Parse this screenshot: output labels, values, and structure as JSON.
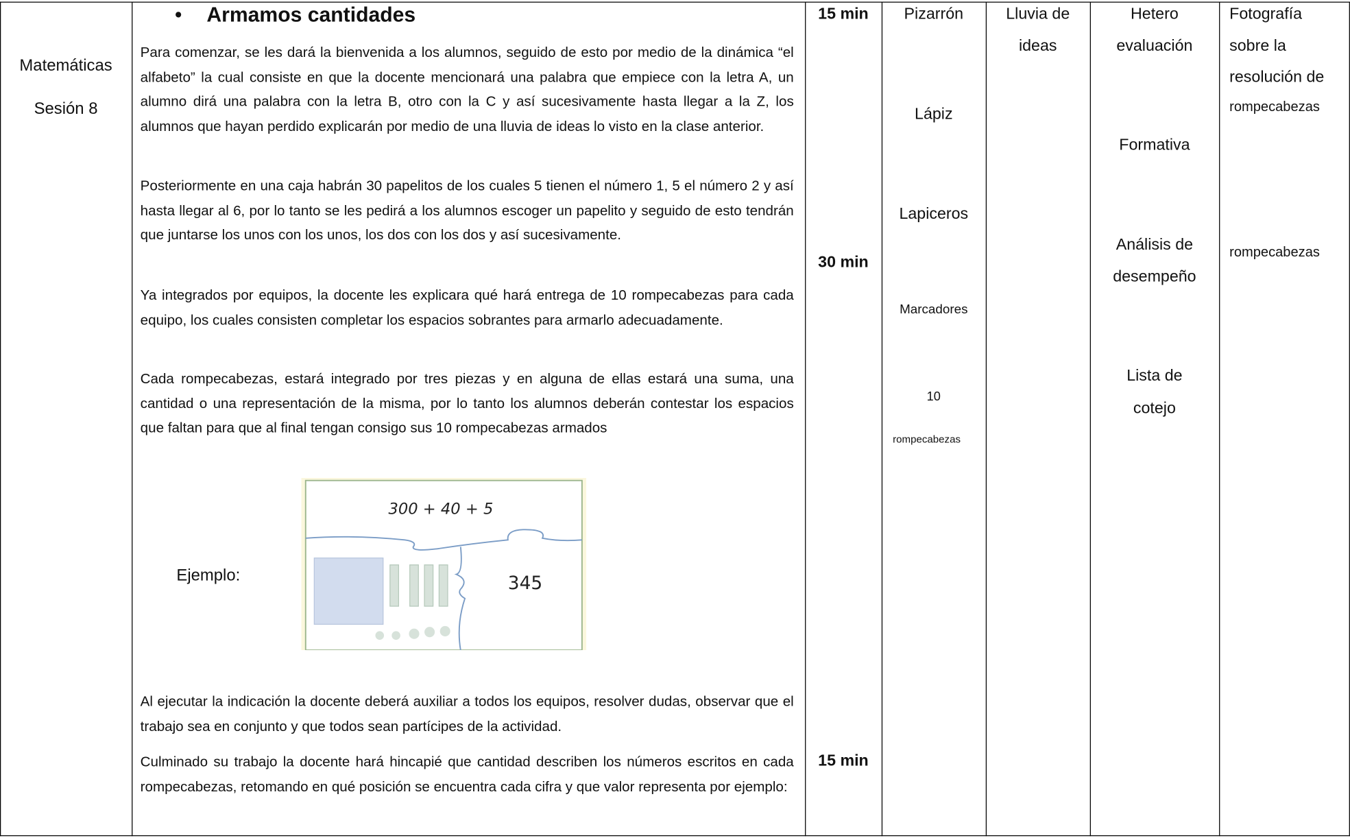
{
  "session": {
    "subject": "Matemáticas",
    "label": "Sesión 8"
  },
  "activity": {
    "title": "Armamos cantidades",
    "paragraphs": [
      "Para comenzar, se les dará la bienvenida a los alumnos, seguido de esto por medio de la dinámica “el alfabeto” la cual consiste en que la docente mencionará una palabra que empiece con la letra A, un alumno dirá una palabra con la letra B, otro con la C y así sucesivamente hasta llegar a la Z, los alumnos que hayan perdido explicarán por medio de una lluvia de ideas lo visto en la clase anterior.",
      "Posteriormente en una caja habrán 30 papelitos de los cuales 5 tienen el número 1, 5 el número 2 y así hasta llegar al 6, por lo tanto se les pedirá a los alumnos escoger un papelito y seguido de esto tendrán que juntarse los unos con los unos, los dos con los dos y así sucesivamente.",
      "Ya integrados por equipos, la docente les explicara qué hará entrega de 10 rompecabezas para cada equipo, los cuales consisten completar los espacios sobrantes para armarlo adecuadamente.",
      "Cada rompecabezas, estará integrado por tres piezas y en alguna de ellas estará una suma, una cantidad o una representación de la misma, por lo tanto los alumnos deberán contestar los espacios que faltan para que al final tengan consigo sus 10 rompecabezas armados",
      "Al ejecutar la indicación la docente deberá auxiliar a todos los equipos, resolver dudas, observar que el trabajo sea en conjunto y que todos sean partícipes de la actividad.",
      "Culminado su trabajo la docente hará hincapié que cantidad describen los números escritos en cada rompecabezas, retomando en qué posición se encuentra cada cifra y que valor representa por ejemplo:"
    ],
    "example": {
      "label": "Ejemplo:",
      "expression": "300 + 40 + 5",
      "result": "345"
    }
  },
  "times": [
    "15 min",
    "30 min",
    "15 min"
  ],
  "materials": [
    "Pizarrón",
    "Lápiz",
    "Lapiceros",
    "Marcadores",
    "10",
    "rompecabezas"
  ],
  "strategy": [
    "Lluvia de",
    "ideas"
  ],
  "evaluation": [
    "Hetero",
    "evaluación",
    "Formativa",
    "Análisis de",
    "desempeño",
    "Lista de",
    "cotejo"
  ],
  "evidence": [
    "Fotografía",
    "sobre la",
    "resolución de",
    "rompecabezas",
    "rompecabezas"
  ]
}
